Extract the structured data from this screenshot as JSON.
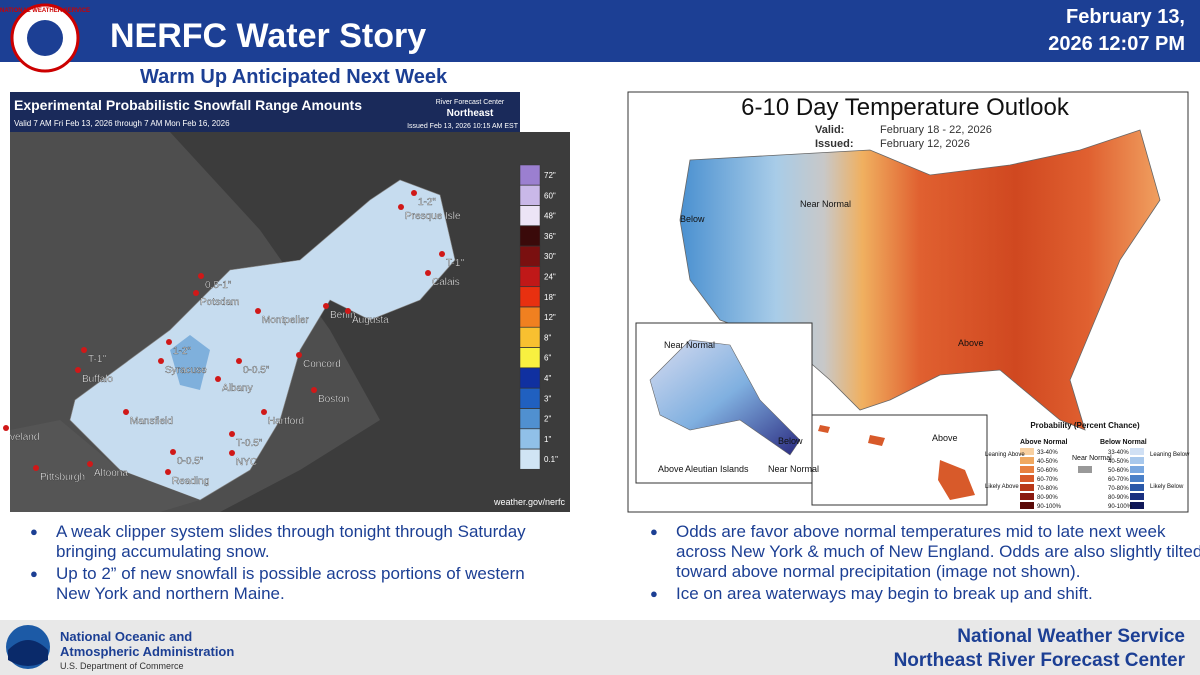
{
  "header": {
    "logo_text": "NATIONAL WEATHER SERVICE",
    "title": "NERFC Water Story",
    "date_line1": "February 13,",
    "date_line2": "2026 12:07 PM",
    "subtitle": "Warm Up Anticipated Next Week"
  },
  "left_map": {
    "title": "Experimental Probabilistic Snowfall Range Amounts",
    "valid": "Valid 7 AM Fri Feb 13, 2026 through 7 AM Mon Feb 16, 2026",
    "rfc": "River Forecast Center",
    "region": "Northeast",
    "issued": "Issued Feb 13, 2026 10:15 AM EST",
    "url": "weather.gov/nerfc",
    "legend": [
      {
        "label": "72\"",
        "color": "#9b7fd0"
      },
      {
        "label": "60\"",
        "color": "#c9b8e8"
      },
      {
        "label": "48\"",
        "color": "#ece4f6"
      },
      {
        "label": "36\"",
        "color": "#3a0a0a"
      },
      {
        "label": "30\"",
        "color": "#7a1010"
      },
      {
        "label": "24\"",
        "color": "#c01818"
      },
      {
        "label": "18\"",
        "color": "#e83010"
      },
      {
        "label": "12\"",
        "color": "#f08020"
      },
      {
        "label": "8\"",
        "color": "#f8c030"
      },
      {
        "label": "6\"",
        "color": "#f8f040"
      },
      {
        "label": "4\"",
        "color": "#1030a0"
      },
      {
        "label": "3\"",
        "color": "#2060c0"
      },
      {
        "label": "2\"",
        "color": "#5090d0"
      },
      {
        "label": "1\"",
        "color": "#90c0e8"
      },
      {
        "label": "0.1\"",
        "color": "#d0e4f4"
      }
    ],
    "places": [
      "1-2\"",
      "Presque Isle",
      "T-1\"",
      "Calais",
      "0.5-1\"",
      "Potsdam",
      "Berlin",
      "Augusta",
      "Montpelier",
      "1-2\"",
      "Syracuse",
      "0-0.5\"",
      "T-1\"",
      "Buffalo",
      "Concord",
      "Albany",
      "Boston",
      "Mansfield",
      "Hartford",
      "T-0.5\"",
      "NYC",
      "0-0.5\"",
      "veland",
      "Pittsburgh",
      "Altoona",
      "Reading"
    ]
  },
  "right_map": {
    "title": "6-10 Day Temperature Outlook",
    "valid_label": "Valid:",
    "valid": "February 18 - 22, 2026",
    "issued_label": "Issued:",
    "issued": "February 12, 2026",
    "labels": [
      "Below",
      "Near Normal",
      "Above",
      "Near Normal",
      "Below",
      "Above",
      "Aleutian Islands",
      "Above",
      "Near Normal"
    ],
    "legend": {
      "title": "Probability (Percent Chance)",
      "above_normal": "Above Normal",
      "below_normal": "Below Normal",
      "near_normal": "Near Normal",
      "leaning_above": "Leaning Above",
      "likely_above": "Likely Above",
      "leaning_below": "Leaning Below",
      "likely_below": "Likely Below",
      "ranges": [
        "33-40%",
        "40-50%",
        "50-60%",
        "60-70%",
        "70-80%",
        "80-90%",
        "90-100%"
      ]
    }
  },
  "left_bullets": [
    "A weak clipper system slides through tonight through Saturday bringing accumulating snow.",
    "Up to 2” of new snowfall is possible across portions of western New York and northern Maine."
  ],
  "right_bullets": [
    "Odds are favor above normal temperatures mid to late next week across New York & much of New England. Odds are also slightly tilted toward above normal precipitation (image not shown).",
    "Ice on area waterways may begin to break up and shift."
  ],
  "footer": {
    "noaa_line1": "National Oceanic and",
    "noaa_line2": "Atmospheric Administration",
    "noaa_line3": "U.S. Department of Commerce",
    "nws": "National Weather Service",
    "nerfc": "Northeast River Forecast Center"
  }
}
